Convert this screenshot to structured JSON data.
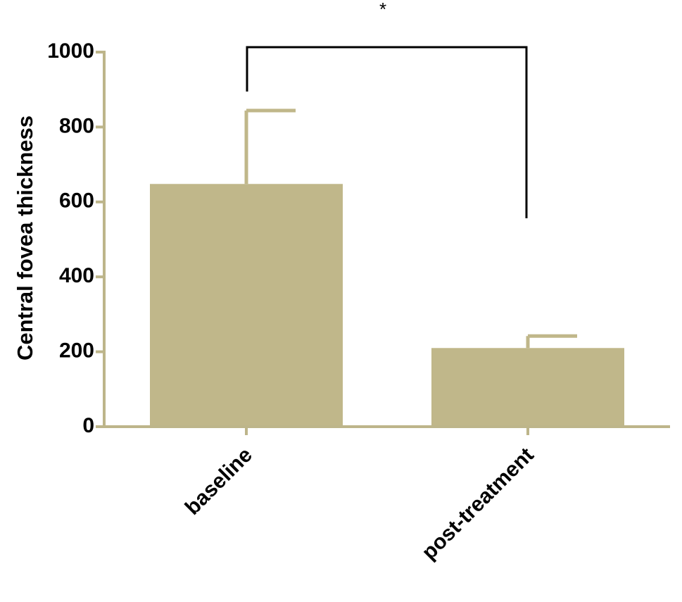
{
  "chart_data": {
    "type": "bar",
    "y_label": "Central fovea thickness",
    "categories": [
      "baseline",
      "post-treatment"
    ],
    "values": [
      648,
      210
    ],
    "errors": [
      196,
      32
    ],
    "color": "#c0b78a",
    "ylim": [
      0,
      1000
    ],
    "yticks": [
      0,
      200,
      400,
      600,
      800,
      1000
    ],
    "annotation": "*"
  }
}
